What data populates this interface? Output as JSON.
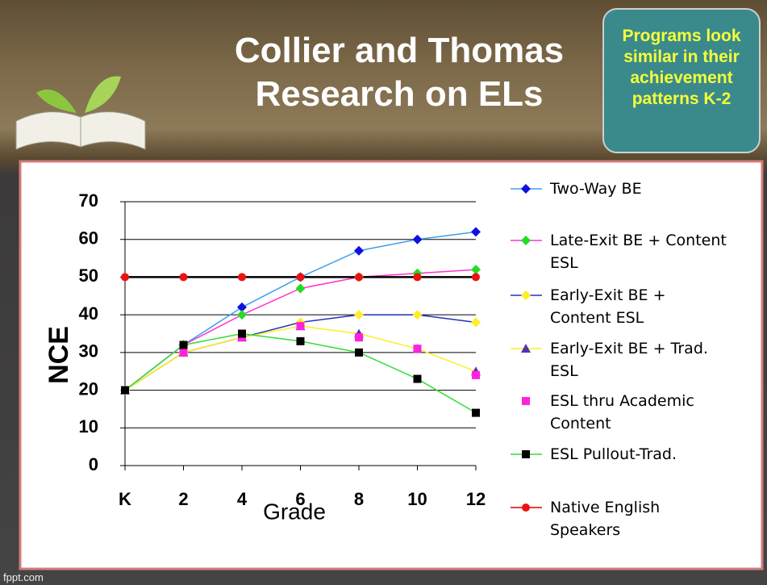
{
  "title": "Collier and Thomas Research on ELs",
  "callout": "Programs look similar in their achievement patterns K-2",
  "footer": "fppt.com",
  "chart_data": {
    "type": "line",
    "ylabel": "NCE",
    "xlabel": "Grade",
    "categories": [
      "K",
      "2",
      "4",
      "6",
      "8",
      "10",
      "12"
    ],
    "ylim": [
      0,
      70
    ],
    "yticks": [
      0,
      10,
      20,
      30,
      40,
      50,
      60,
      70
    ],
    "grid": true,
    "series": [
      {
        "name": "Two-Way BE",
        "color": "#3aa0f0",
        "marker": "diamond",
        "marker_color": "#1010e0",
        "values": [
          20,
          32,
          42,
          50,
          57,
          60,
          62
        ]
      },
      {
        "name": "Late-Exit BE + Content ESL",
        "color": "#ff33cc",
        "marker": "diamond",
        "marker_color": "#22dd22",
        "values": [
          20,
          32,
          40,
          47,
          50,
          51,
          52
        ]
      },
      {
        "name": "Early-Exit BE + Content ESL",
        "color": "#2233bb",
        "marker": "diamond",
        "marker_color": "#ffee22",
        "values": [
          20,
          30,
          34,
          38,
          40,
          40,
          38
        ]
      },
      {
        "name": "Early-Exit BE + Trad. ESL",
        "color": "#ffee22",
        "marker": "triangle",
        "marker_color": "#5533aa",
        "values": [
          20,
          30,
          34,
          37,
          35,
          31,
          25
        ]
      },
      {
        "name": "ESL thru Academic Content",
        "color": null,
        "marker": "square",
        "marker_color": "#ff22dd",
        "values": [
          20,
          30,
          34,
          37,
          34,
          31,
          24
        ]
      },
      {
        "name": "ESL Pullout-Trad.",
        "color": "#33dd33",
        "marker": "square",
        "marker_color": "#000000",
        "values": [
          20,
          32,
          35,
          33,
          30,
          23,
          14
        ]
      },
      {
        "name": "Native English Speakers",
        "color": "#000000",
        "legend_color": "#dd0000",
        "marker": "circle",
        "marker_color": "#ee1111",
        "values": [
          50,
          50,
          50,
          50,
          50,
          50,
          50
        ]
      }
    ]
  }
}
